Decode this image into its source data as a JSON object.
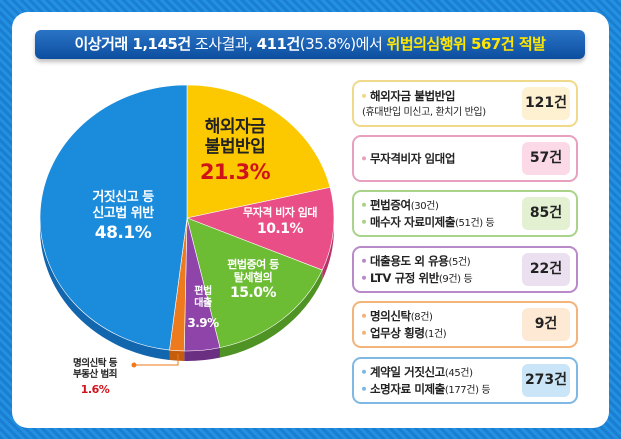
{
  "title": {
    "p1": "이상거래 1,145건",
    "p2": " 조사결과, ",
    "p3": "411건",
    "p4": "(35.8%)에서 ",
    "p5": "위법의심행위 567건 적발"
  },
  "chart_data": {
    "type": "pie",
    "slices": [
      {
        "label": "해외자금 불법반입",
        "value": 21.3,
        "color": "#fcc800",
        "dark": "#d9a700"
      },
      {
        "label": "무자격 비자 임대",
        "value": 10.1,
        "color": "#e94f86",
        "dark": "#b83366"
      },
      {
        "label": "편법증여 등 탈세혐의",
        "value": 15.0,
        "color": "#6cbc34",
        "dark": "#4e9323"
      },
      {
        "label": "편법 대출",
        "value": 3.9,
        "color": "#8e44a8",
        "dark": "#6b2f82"
      },
      {
        "label": "명의신탁 등 부동산 범죄",
        "value": 1.6,
        "color": "#ee7a1e",
        "dark": "#c45d0c"
      },
      {
        "label": "거짓신고 등 신고법 위반",
        "value": 48.1,
        "color": "#1b8bdc",
        "dark": "#1266ad"
      }
    ],
    "labels": {
      "s0a": "해외자금",
      "s0b": "불법반입",
      "s0p": "21.3%",
      "s1a": "무자격 비자 임대",
      "s1p": "10.1%",
      "s2a": "편법증여 등",
      "s2b": "탈세혐의",
      "s2p": "15.0%",
      "s3a": "편법",
      "s3b": "대출",
      "s3p": "3.9%",
      "s4a": "명의신탁 등",
      "s4b": "부동산 범죄",
      "s4p": "1.6%",
      "s5a": "거짓신고 등",
      "s5b": "신고법 위반",
      "s5p": "48.1%"
    }
  },
  "cases": [
    {
      "l1": "해외자금 불법반입",
      "l1s": "",
      "l2": "(휴대반입 미신고, 환치기 반입)",
      "l2s": "",
      "value": "121건",
      "border": "#f0d98a",
      "fill": "#fdf1d2"
    },
    {
      "l1": "무자격비자 임대업",
      "l1s": "",
      "l2": "",
      "l2s": "",
      "value": "57건",
      "border": "#e7a1bf",
      "fill": "#fbd9e7"
    },
    {
      "l1": "편법증여",
      "l1s": "(30건)",
      "l2": "매수자 자료미제출",
      "l2s": "(51건) 등",
      "value": "85건",
      "border": "#a9d38a",
      "fill": "#e3f0d2"
    },
    {
      "l1": "대출용도 외 유용",
      "l1s": "(5건)",
      "l2": "LTV 규정 위반",
      "l2s": "(9건) 등",
      "value": "22건",
      "border": "#b88ac9",
      "fill": "#ebe0f0"
    },
    {
      "l1": "명의신탁",
      "l1s": "(8건)",
      "l2": "업무상 횡령",
      "l2s": "(1건)",
      "value": "9건",
      "border": "#f2b47a",
      "fill": "#fde9d4"
    },
    {
      "l1": "계약일 거짓신고",
      "l1s": "(45건)",
      "l2": "소명자료 미제출",
      "l2s": "(177건) 등",
      "value": "273건",
      "border": "#7fb9e3",
      "fill": "#c9e5f7"
    }
  ]
}
